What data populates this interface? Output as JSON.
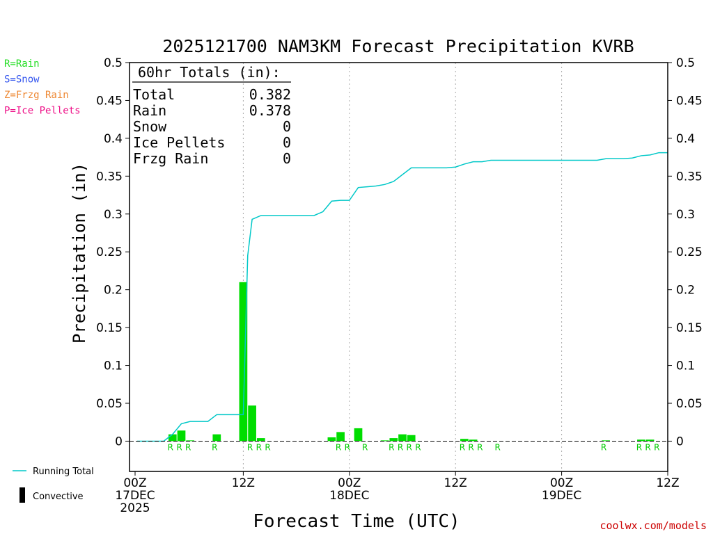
{
  "chart_data": {
    "type": "bar",
    "title": "2025121700 NAM3KM Forecast Precipitation KVRB",
    "xlabel": "Forecast Time (UTC)",
    "ylabel": "Precipitation (in)",
    "ylim": [
      -0.04,
      0.5
    ],
    "xlim_hours": [
      0,
      60
    ],
    "y_ticks": [
      "0.5",
      "0.45",
      "0.4",
      "0.35",
      "0.3",
      "0.25",
      "0.2",
      "0.15",
      "0.1",
      "0.05",
      "0"
    ],
    "y_tick_values": [
      0.5,
      0.45,
      0.4,
      0.35,
      0.3,
      0.25,
      0.2,
      0.15,
      0.1,
      0.05,
      0
    ],
    "x_ticks": [
      {
        "hour": 0,
        "lines": [
          "00Z",
          "17DEC",
          "2025"
        ]
      },
      {
        "hour": 12,
        "lines": [
          "12Z"
        ]
      },
      {
        "hour": 24,
        "lines": [
          "00Z",
          "18DEC"
        ]
      },
      {
        "hour": 36,
        "lines": [
          "12Z"
        ]
      },
      {
        "hour": 48,
        "lines": [
          "00Z",
          "19DEC"
        ]
      },
      {
        "hour": 60,
        "lines": [
          "12Z"
        ]
      }
    ],
    "grid_hours": [
      12,
      24,
      36,
      48
    ],
    "bar_series": {
      "name": "Hourly precipitation",
      "color": "#00dd00",
      "hours": [
        4,
        5,
        6,
        9,
        12,
        13,
        14,
        22,
        23,
        25,
        28,
        29,
        30,
        31,
        37,
        38,
        53,
        57,
        58
      ],
      "values": [
        0.009,
        0.014,
        0.001,
        0.009,
        0.21,
        0.047,
        0.004,
        0.005,
        0.012,
        0.017,
        0.001,
        0.004,
        0.009,
        0.008,
        0.003,
        0.002,
        0.001,
        0.002,
        0.002
      ]
    },
    "running_total": {
      "name": "Running Total",
      "color": "#00c8c8",
      "hours": [
        0,
        1,
        2,
        3,
        4,
        5,
        6,
        7,
        8,
        9,
        10,
        11,
        12,
        12.5,
        13,
        14,
        15,
        20,
        21,
        22,
        23,
        24,
        25,
        26,
        27,
        28,
        29,
        30,
        31,
        32,
        33,
        34,
        35,
        36,
        37,
        38,
        39,
        40,
        44,
        45,
        46,
        48,
        49,
        50,
        51,
        52,
        53,
        54,
        55,
        56,
        57,
        58,
        59,
        60
      ],
      "values": [
        0,
        0,
        0,
        0.0,
        0.009,
        0.023,
        0.026,
        0.026,
        0.026,
        0.035,
        0.035,
        0.035,
        0.035,
        0.245,
        0.293,
        0.298,
        0.298,
        0.298,
        0.303,
        0.317,
        0.318,
        0.318,
        0.335,
        0.336,
        0.337,
        0.339,
        0.343,
        0.352,
        0.361,
        0.361,
        0.361,
        0.361,
        0.361,
        0.362,
        0.366,
        0.369,
        0.369,
        0.371,
        0.371,
        0.371,
        0.371,
        0.371,
        0.371,
        0.371,
        0.371,
        0.371,
        0.373,
        0.373,
        0.373,
        0.374,
        0.377,
        0.378,
        0.381,
        0.381
      ]
    },
    "precip_type_markers": {
      "hours": [
        4,
        5,
        6,
        9,
        13,
        14,
        15,
        23,
        24,
        26,
        29,
        30,
        31,
        32,
        37,
        38,
        39,
        41,
        53,
        57,
        58,
        59
      ],
      "labels": [
        "R",
        "R",
        "R",
        "R",
        "R",
        "R",
        "R",
        "R",
        "R",
        "R",
        "R",
        "R",
        "R",
        "R",
        "R",
        "R",
        "R",
        "R",
        "R",
        "R",
        "R",
        "R"
      ]
    },
    "totals_box": {
      "heading": "60hr Totals (in):",
      "rows": [
        {
          "label": "Total",
          "value": "0.382"
        },
        {
          "label": "Rain",
          "value": "0.378"
        },
        {
          "label": "Snow",
          "value": "0"
        },
        {
          "label": "Ice Pellets",
          "value": "0"
        },
        {
          "label": "Frzg Rain",
          "value": "0"
        }
      ]
    },
    "type_legend": [
      {
        "text": "R=Rain",
        "color": "#22dd22"
      },
      {
        "text": "S=Snow",
        "color": "#3355ee"
      },
      {
        "text": "Z=Frzg Rain",
        "color": "#ee8833"
      },
      {
        "text": "P=Ice Pellets",
        "color": "#ee1188"
      }
    ],
    "series_legend": [
      {
        "text": "Running Total",
        "color": "#00c8c8",
        "kind": "line"
      },
      {
        "text": "Convective",
        "color": "#000000",
        "kind": "bar"
      }
    ],
    "credit": "coolwx.com/models"
  }
}
